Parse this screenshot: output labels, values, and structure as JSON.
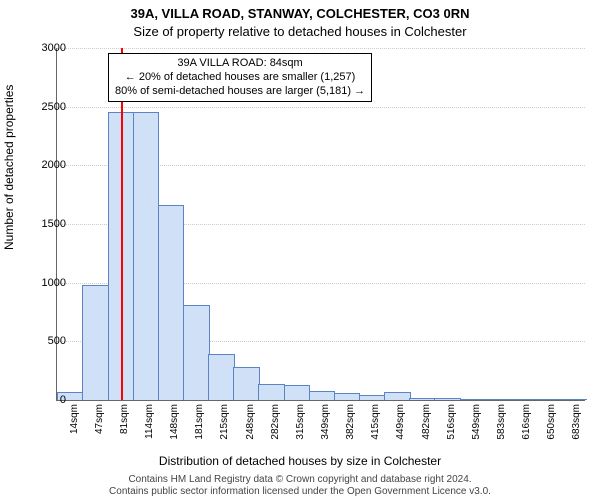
{
  "title_line1": "39A, VILLA ROAD, STANWAY, COLCHESTER, CO3 0RN",
  "title_line2": "Size of property relative to detached houses in Colchester",
  "ylabel": "Number of detached properties",
  "xlabel": "Distribution of detached houses by size in Colchester",
  "footer_line1": "Contains HM Land Registry data © Crown copyright and database right 2024.",
  "footer_line2": "Contains public sector information licensed under the Open Government Licence v3.0.",
  "chart": {
    "type": "histogram",
    "ylim": [
      0,
      3000
    ],
    "ytick_step": 500,
    "background_color": "#ffffff",
    "grid_color": "#cccccc",
    "axis_color": "#666666",
    "bar_fill": "#cfe0f7",
    "bar_stroke": "#5b84c4",
    "bar_stroke_width": 1,
    "marker_color": "#ff0000",
    "marker_value": 84,
    "label_fontsize": 12,
    "tick_fontsize": 11,
    "xtick_fontsize": 10,
    "categories": [
      "14sqm",
      "47sqm",
      "81sqm",
      "114sqm",
      "148sqm",
      "181sqm",
      "215sqm",
      "248sqm",
      "282sqm",
      "315sqm",
      "349sqm",
      "382sqm",
      "415sqm",
      "449sqm",
      "482sqm",
      "516sqm",
      "549sqm",
      "583sqm",
      "616sqm",
      "650sqm",
      "683sqm"
    ],
    "values": [
      60,
      970,
      2450,
      2450,
      1650,
      800,
      380,
      270,
      130,
      120,
      70,
      50,
      30,
      60,
      10,
      5,
      3,
      2,
      2,
      1,
      1
    ]
  },
  "annotation": {
    "line1": "39A VILLA ROAD: 84sqm",
    "line2": "← 20% of detached houses are smaller (1,257)",
    "line3": "80% of semi-detached houses are larger (5,181) →",
    "border_color": "#000000",
    "background_color": "#ffffff",
    "fontsize": 11
  }
}
